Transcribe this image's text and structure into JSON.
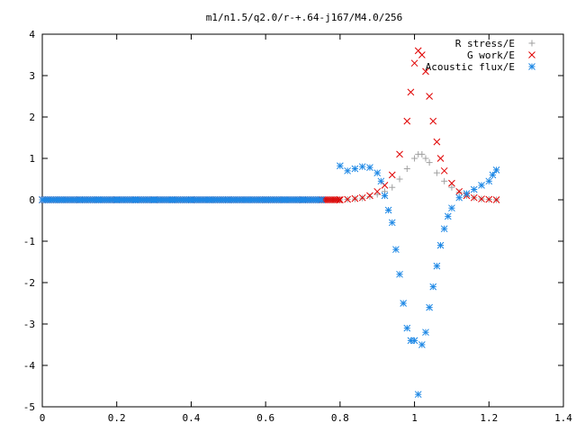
{
  "chart_data": {
    "type": "scatter",
    "title": "m1/n1.5/q2.0/r-+.64-j167/M4.0/256",
    "xlabel": "",
    "ylabel": "",
    "xlim": [
      0,
      1.4
    ],
    "ylim": [
      -5,
      4
    ],
    "xticks": [
      "0",
      "0.2",
      "0.4",
      "0.6",
      "0.8",
      "1",
      "1.2",
      "1.4"
    ],
    "yticks": [
      "4",
      "3",
      "2",
      "1",
      "0",
      "-1",
      "-2",
      "-3",
      "-4",
      "-5"
    ],
    "grid": false,
    "legend": "top-right",
    "series": [
      {
        "name": "R stress/E",
        "marker": "plus",
        "color": "#a0a0a0",
        "x": [
          0.0,
          0.1,
          0.2,
          0.3,
          0.4,
          0.5,
          0.6,
          0.7,
          0.8,
          0.82,
          0.84,
          0.86,
          0.88,
          0.9,
          0.92,
          0.94,
          0.96,
          0.98,
          1.0,
          1.01,
          1.02,
          1.03,
          1.04,
          1.06,
          1.08,
          1.1,
          1.12,
          1.14,
          1.16,
          1.18,
          1.2,
          1.22
        ],
        "y": [
          0,
          0,
          0,
          0,
          0,
          0,
          0,
          0,
          0,
          0.01,
          0.02,
          0.04,
          0.08,
          0.13,
          0.2,
          0.3,
          0.5,
          0.75,
          1.0,
          1.1,
          1.1,
          1.0,
          0.9,
          0.65,
          0.45,
          0.3,
          0.18,
          0.1,
          0.05,
          0.02,
          0.01,
          0.0
        ]
      },
      {
        "name": "G work/E",
        "marker": "cross",
        "color": "#e00000",
        "x": [
          0.0,
          0.1,
          0.2,
          0.3,
          0.4,
          0.5,
          0.6,
          0.7,
          0.8,
          0.82,
          0.84,
          0.86,
          0.88,
          0.9,
          0.92,
          0.94,
          0.96,
          0.98,
          0.99,
          1.0,
          1.01,
          1.02,
          1.03,
          1.04,
          1.05,
          1.06,
          1.07,
          1.08,
          1.1,
          1.12,
          1.14,
          1.16,
          1.18,
          1.2,
          1.22
        ],
        "y": [
          0,
          0,
          0,
          0,
          0,
          0,
          0,
          0,
          0,
          0.01,
          0.03,
          0.05,
          0.1,
          0.2,
          0.35,
          0.6,
          1.1,
          1.9,
          2.6,
          3.3,
          3.6,
          3.5,
          3.1,
          2.5,
          1.9,
          1.4,
          1.0,
          0.7,
          0.4,
          0.2,
          0.1,
          0.05,
          0.02,
          0.01,
          0.0
        ]
      },
      {
        "name": "Acoustic flux/E",
        "marker": "star",
        "color": "#1e88e5",
        "x": [
          0.0,
          0.05,
          0.1,
          0.15,
          0.2,
          0.25,
          0.3,
          0.35,
          0.4,
          0.45,
          0.5,
          0.55,
          0.6,
          0.65,
          0.7,
          0.75,
          0.8,
          0.82,
          0.84,
          0.86,
          0.88,
          0.9,
          0.91,
          0.92,
          0.93,
          0.94,
          0.95,
          0.96,
          0.97,
          0.98,
          0.99,
          1.0,
          1.01,
          1.02,
          1.03,
          1.04,
          1.05,
          1.06,
          1.07,
          1.08,
          1.09,
          1.1,
          1.12,
          1.14,
          1.16,
          1.18,
          1.2,
          1.21,
          1.22
        ],
        "y": [
          0,
          0,
          0,
          0,
          0,
          0,
          0,
          0,
          0,
          0,
          0,
          0,
          0,
          0,
          0,
          0,
          0.82,
          0.7,
          0.75,
          0.8,
          0.78,
          0.65,
          0.45,
          0.1,
          -0.25,
          -0.55,
          -1.2,
          -1.8,
          -2.5,
          -3.1,
          -3.4,
          -3.4,
          -4.7,
          -3.5,
          -3.2,
          -2.6,
          -2.1,
          -1.6,
          -1.1,
          -0.7,
          -0.4,
          -0.2,
          0.05,
          0.15,
          0.25,
          0.35,
          0.45,
          0.6,
          0.72
        ]
      }
    ]
  }
}
